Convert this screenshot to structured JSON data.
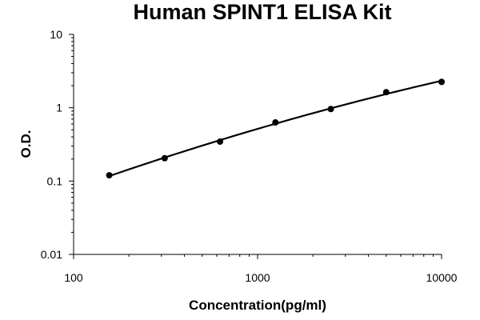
{
  "chart_data": {
    "type": "scatter",
    "title": "Human SPINT1 ELISA Kit",
    "xlabel": "Concentration(pg/ml)",
    "ylabel": "O.D.",
    "x_scale": "log",
    "y_scale": "log",
    "xlim": [
      100,
      10000
    ],
    "ylim": [
      0.01,
      10
    ],
    "x_ticks": [
      100,
      1000,
      10000
    ],
    "x_tick_labels": [
      "100",
      "1000",
      "10000"
    ],
    "y_ticks": [
      0.01,
      0.1,
      1,
      10
    ],
    "y_tick_labels": [
      "0.01",
      "0.1",
      "1",
      "10"
    ],
    "grid": false,
    "legend": "none",
    "series": [
      {
        "x": [
          156.25,
          312.5,
          625,
          1250,
          2500,
          5000,
          10000
        ],
        "y": [
          0.12,
          0.205,
          0.345,
          0.63,
          0.96,
          1.63,
          2.25
        ],
        "marker": "circle",
        "trendline": "smooth",
        "color": "#000000"
      }
    ]
  }
}
